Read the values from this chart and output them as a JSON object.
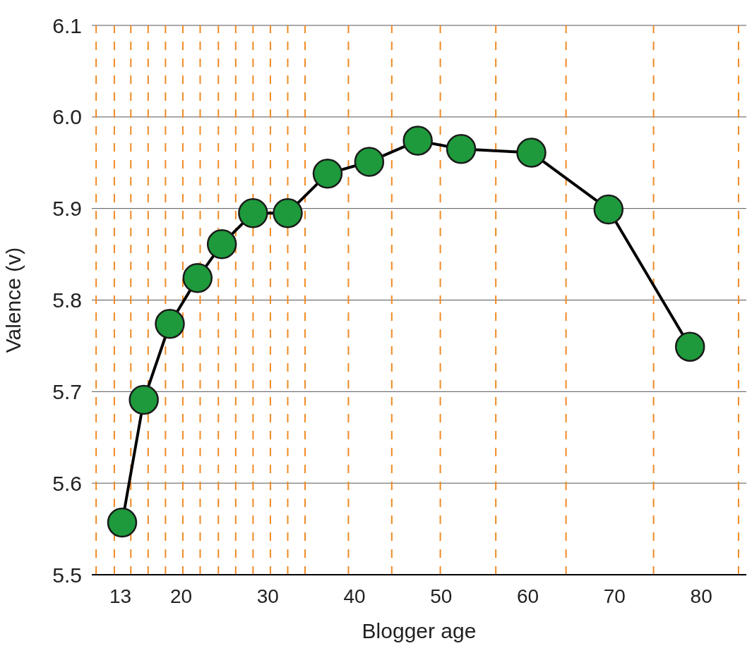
{
  "chart_data": {
    "type": "line",
    "xlabel": "Blogger age",
    "ylabel": "Valence (v)",
    "series": [
      {
        "color": "#000000",
        "colors": [
          "#1e9a3c",
          "#1e9a3c",
          "#1e9a3c",
          "#1e9a3c",
          "#1e9a3c",
          "#1e9a3c",
          "#1e9a3c",
          "#1e9a3c",
          "#1e9a3c",
          "#1e9a3c",
          "#1e9a3c",
          "#1e9a3c",
          "#1e9a3c",
          "#1e9a3c"
        ],
        "x": [
          13.2,
          15.7,
          18.7,
          21.9,
          24.7,
          28.3,
          32.3,
          36.9,
          41.7,
          47.3,
          52.3,
          60.4,
          69.3,
          78.7
        ],
        "values": [
          5.557,
          5.691,
          5.774,
          5.824,
          5.861,
          5.895,
          5.895,
          5.938,
          5.951,
          5.974,
          5.965,
          5.961,
          5.899,
          5.749
        ]
      }
    ],
    "xlim": [
      9.7,
      85.2
    ],
    "xticks": [
      13,
      20,
      30,
      40,
      50,
      60,
      70,
      80
    ],
    "ylim": [
      5.5,
      6.1
    ],
    "yticks": [
      5.5,
      5.6,
      5.7,
      5.8,
      5.9,
      {
        "value": 6,
        "label": "6.0"
      },
      6.1
    ],
    "grid": "y",
    "marker": "circle",
    "line_style": "solid",
    "legend": false,
    "ref_lines": [
      {
        "axis": "x",
        "value": 10.2,
        "color": "#f08a24",
        "line_style": "dashed"
      },
      {
        "axis": "x",
        "value": 12.3,
        "color": "#f08a24",
        "line_style": "dashed"
      },
      {
        "axis": "x",
        "value": 14.2,
        "color": "#f08a24",
        "line_style": "dashed"
      },
      {
        "axis": "x",
        "value": 16.2,
        "color": "#f08a24",
        "line_style": "dashed"
      },
      {
        "axis": "x",
        "value": 18.2,
        "color": "#f08a24",
        "line_style": "dashed"
      },
      {
        "axis": "x",
        "value": 20.2,
        "color": "#f08a24",
        "line_style": "dashed"
      },
      {
        "axis": "x",
        "value": 22.2,
        "color": "#f08a24",
        "line_style": "dashed"
      },
      {
        "axis": "x",
        "value": 24.3,
        "color": "#f08a24",
        "line_style": "dashed"
      },
      {
        "axis": "x",
        "value": 26.3,
        "color": "#f08a24",
        "line_style": "dashed"
      },
      {
        "axis": "x",
        "value": 28.3,
        "color": "#f08a24",
        "line_style": "dashed"
      },
      {
        "axis": "x",
        "value": 30.3,
        "color": "#f08a24",
        "line_style": "dashed"
      },
      {
        "axis": "x",
        "value": 32.3,
        "color": "#f08a24",
        "line_style": "dashed"
      },
      {
        "axis": "x",
        "value": 34.3,
        "color": "#f08a24",
        "line_style": "dashed"
      },
      {
        "axis": "x",
        "value": 39.3,
        "color": "#f08a24",
        "line_style": "dashed"
      },
      {
        "axis": "x",
        "value": 44.3,
        "color": "#f08a24",
        "line_style": "dashed"
      },
      {
        "axis": "x",
        "value": 49.9,
        "color": "#f08a24",
        "line_style": "dashed"
      },
      {
        "axis": "x",
        "value": 56.3,
        "color": "#f08a24",
        "line_style": "dashed"
      },
      {
        "axis": "x",
        "value": 64.4,
        "color": "#f08a24",
        "line_style": "dashed"
      },
      {
        "axis": "x",
        "value": 74.5,
        "color": "#f08a24",
        "line_style": "dashed"
      },
      {
        "axis": "x",
        "value": 84.3,
        "color": "#f08a24",
        "line_style": "dashed"
      }
    ]
  }
}
